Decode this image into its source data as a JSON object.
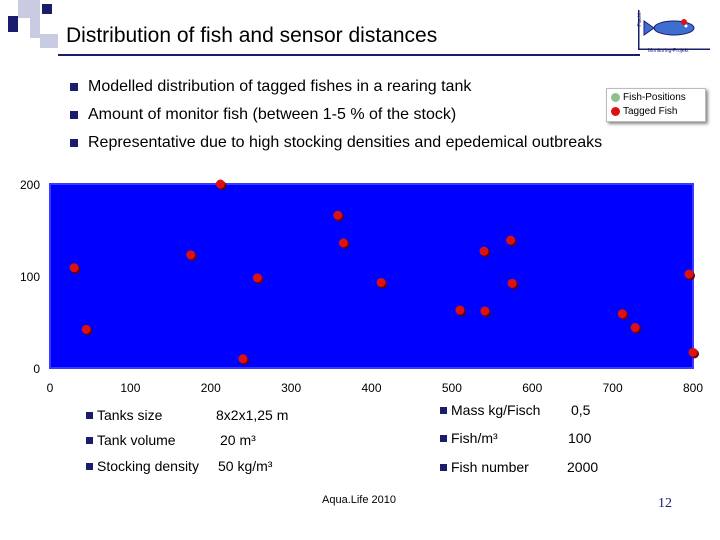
{
  "slide": {
    "title": "Distribution of fish and sensor distances",
    "bullets": [
      "Modelled distribution of tagged fishes in a rearing tank",
      "Amount of monitor fish (between 1-5 % of the stock)",
      "Representative due to high stocking densities and epedemical outbreaks"
    ],
    "logo_caption": "Monitoring-Projekt",
    "logo_vertical_text": "Fischl.",
    "footer": "Aqua.Life 2010",
    "page_number": "12"
  },
  "legend": {
    "entries": [
      {
        "label": "Fish-Positions",
        "color": "#8fbf8f"
      },
      {
        "label": "Tagged Fish",
        "color": "#dd1111"
      }
    ]
  },
  "chart_data": {
    "type": "scatter",
    "plot_background": "#0000ff",
    "point_color": "#dd1111",
    "xlim": [
      0,
      800
    ],
    "ylim": [
      0,
      200
    ],
    "x_ticks": [
      0,
      100,
      200,
      300,
      400,
      500,
      600,
      700,
      800
    ],
    "y_ticks": [
      0,
      100,
      200
    ],
    "series": [
      {
        "points": [
          [
            30,
            109
          ],
          [
            45,
            42
          ],
          [
            175,
            123
          ],
          [
            212,
            203
          ],
          [
            240,
            10
          ],
          [
            258,
            98
          ],
          [
            358,
            166
          ],
          [
            365,
            136
          ],
          [
            412,
            93
          ],
          [
            510,
            63
          ],
          [
            541,
            62
          ],
          [
            540,
            127
          ],
          [
            573,
            139
          ],
          [
            575,
            92
          ],
          [
            712,
            59
          ],
          [
            728,
            44
          ],
          [
            795,
            102
          ],
          [
            806,
            17
          ]
        ]
      }
    ]
  },
  "tank_params_left": [
    {
      "label": "Tanks size",
      "value": "8x2x1,25 m"
    },
    {
      "label": "Tank volume",
      "value": "20 m³"
    },
    {
      "label": "Stocking density",
      "value": "50 kg/m³"
    }
  ],
  "tank_params_right": [
    {
      "label": "Mass kg/Fisch",
      "value": "0,5"
    },
    {
      "label": "Fish/m³",
      "value": "100"
    },
    {
      "label": "Fish number",
      "value": "2000"
    }
  ]
}
